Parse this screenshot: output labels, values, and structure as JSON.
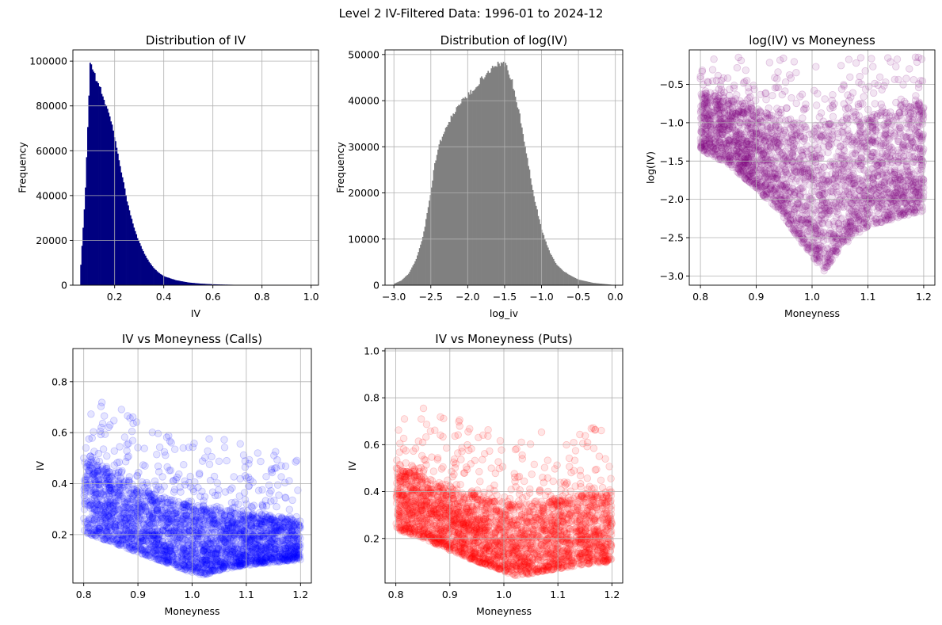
{
  "figure": {
    "suptitle": "Level 2 IV-Filtered Data: 1996-01 to 2024-12"
  },
  "chart_data": [
    {
      "type": "bar",
      "id": "hist_iv",
      "title": "Distribution of IV",
      "xlabel": "IV",
      "ylabel": "Frequency",
      "xlim": [
        0.03,
        1.03
      ],
      "ylim": [
        0,
        105000
      ],
      "xticks": [
        0.2,
        0.4,
        0.6,
        0.8,
        1.0
      ],
      "xtick_labels": [
        "0.2",
        "0.4",
        "0.6",
        "0.8",
        "1.0"
      ],
      "yticks": [
        0,
        20000,
        40000,
        60000,
        80000,
        100000
      ],
      "ytick_labels": [
        "0",
        "20000",
        "40000",
        "60000",
        "80000",
        "100000"
      ],
      "grid": true,
      "color": "#000080",
      "bin_range": [
        0.06,
        1.0
      ],
      "bins": 200,
      "profile_x": [
        0.06,
        0.08,
        0.1,
        0.105,
        0.11,
        0.12,
        0.14,
        0.16,
        0.18,
        0.2,
        0.22,
        0.24,
        0.26,
        0.28,
        0.3,
        0.32,
        0.34,
        0.36,
        0.38,
        0.4,
        0.45,
        0.5,
        0.55,
        0.6,
        0.65,
        0.7,
        0.75,
        0.8,
        1.0
      ],
      "profile_y": [
        5000,
        40000,
        99000,
        99500,
        97000,
        93000,
        88000,
        82000,
        75000,
        66000,
        55000,
        43000,
        33000,
        25000,
        19000,
        14000,
        10500,
        7500,
        5500,
        4000,
        2200,
        1200,
        700,
        400,
        250,
        150,
        100,
        50,
        0
      ]
    },
    {
      "type": "bar",
      "id": "hist_logiv",
      "title": "Distribution of log(IV)",
      "xlabel": "log_iv",
      "ylabel": "Frequency",
      "xlim": [
        -3.12,
        0.1
      ],
      "ylim": [
        0,
        51000
      ],
      "xticks": [
        -3.0,
        -2.5,
        -2.0,
        -1.5,
        -1.0,
        -0.5,
        0.0
      ],
      "xtick_labels": [
        "−3.0",
        "−2.5",
        "−2.0",
        "−1.5",
        "−1.0",
        "−0.5",
        "0.0"
      ],
      "yticks": [
        0,
        10000,
        20000,
        30000,
        40000,
        50000
      ],
      "ytick_labels": [
        "0",
        "10000",
        "20000",
        "30000",
        "40000",
        "50000"
      ],
      "grid": true,
      "color": "#808080",
      "bin_range": [
        -3.0,
        -0.05
      ],
      "bins": 200,
      "profile_x": [
        -3.0,
        -2.9,
        -2.8,
        -2.7,
        -2.6,
        -2.5,
        -2.45,
        -2.4,
        -2.3,
        -2.2,
        -2.1,
        -2.0,
        -1.9,
        -1.8,
        -1.7,
        -1.6,
        -1.55,
        -1.5,
        -1.45,
        -1.4,
        -1.3,
        -1.2,
        -1.1,
        -1.0,
        -0.9,
        -0.8,
        -0.7,
        -0.6,
        -0.5,
        -0.3,
        -0.05
      ],
      "profile_y": [
        300,
        1000,
        2500,
        5500,
        11000,
        20000,
        26000,
        30000,
        34000,
        37000,
        39500,
        41000,
        43000,
        45000,
        46500,
        48000,
        48300,
        48000,
        46500,
        44000,
        37000,
        28000,
        19000,
        12000,
        7500,
        4500,
        3000,
        2000,
        1200,
        500,
        100
      ]
    },
    {
      "type": "scatter",
      "id": "scatter_logiv",
      "title": "log(IV) vs Moneyness",
      "xlabel": "Moneyness",
      "ylabel": "log(IV)",
      "xlim": [
        0.78,
        1.22
      ],
      "ylim": [
        -3.12,
        -0.05
      ],
      "xticks": [
        0.8,
        0.9,
        1.0,
        1.1,
        1.2
      ],
      "xtick_labels": [
        "0.8",
        "0.9",
        "1.0",
        "1.1",
        "1.2"
      ],
      "yticks": [
        -3.0,
        -2.5,
        -2.0,
        -1.5,
        -1.0,
        -0.5
      ],
      "ytick_labels": [
        "−3.0",
        "−2.5",
        "−2.0",
        "−1.5",
        "−1.0",
        "−0.5"
      ],
      "grid": true,
      "color": "#800080",
      "alpha": 0.1,
      "density": "very dense",
      "lower_envelope": [
        [
          0.8,
          -1.35
        ],
        [
          0.85,
          -1.55
        ],
        [
          0.9,
          -1.85
        ],
        [
          0.95,
          -2.25
        ],
        [
          1.0,
          -2.75
        ],
        [
          1.02,
          -2.95
        ],
        [
          1.05,
          -2.65
        ],
        [
          1.1,
          -2.35
        ],
        [
          1.15,
          -2.25
        ],
        [
          1.2,
          -2.15
        ]
      ],
      "upper_envelope": [
        [
          0.8,
          -0.6
        ],
        [
          0.85,
          -0.7
        ],
        [
          0.9,
          -0.85
        ],
        [
          0.95,
          -0.95
        ],
        [
          1.0,
          -1.05
        ],
        [
          1.05,
          -1.0
        ],
        [
          1.1,
          -0.95
        ],
        [
          1.15,
          -0.85
        ],
        [
          1.2,
          -0.75
        ]
      ]
    },
    {
      "type": "scatter",
      "id": "scatter_calls",
      "title": "IV vs Moneyness (Calls)",
      "xlabel": "Moneyness",
      "ylabel": "IV",
      "xlim": [
        0.78,
        1.22
      ],
      "ylim": [
        0.01,
        0.93
      ],
      "xticks": [
        0.8,
        0.9,
        1.0,
        1.1,
        1.2
      ],
      "xtick_labels": [
        "0.8",
        "0.9",
        "1.0",
        "1.1",
        "1.2"
      ],
      "yticks": [
        0.2,
        0.4,
        0.6,
        0.8
      ],
      "ytick_labels": [
        "0.2",
        "0.4",
        "0.6",
        "0.8"
      ],
      "grid": true,
      "color": "#0000ff",
      "alpha": 0.1,
      "density": "very dense",
      "lower_envelope": [
        [
          0.8,
          0.21
        ],
        [
          0.85,
          0.17
        ],
        [
          0.9,
          0.13
        ],
        [
          0.95,
          0.09
        ],
        [
          1.0,
          0.05
        ],
        [
          1.02,
          0.04
        ],
        [
          1.05,
          0.06
        ],
        [
          1.1,
          0.08
        ],
        [
          1.15,
          0.09
        ],
        [
          1.2,
          0.1
        ]
      ],
      "upper_envelope": [
        [
          0.8,
          0.5
        ],
        [
          0.85,
          0.45
        ],
        [
          0.9,
          0.38
        ],
        [
          0.95,
          0.34
        ],
        [
          1.0,
          0.31
        ],
        [
          1.05,
          0.3
        ],
        [
          1.1,
          0.28
        ],
        [
          1.15,
          0.27
        ],
        [
          1.2,
          0.25
        ]
      ]
    },
    {
      "type": "scatter",
      "id": "scatter_puts",
      "title": "IV vs Moneyness (Puts)",
      "xlabel": "Moneyness",
      "ylabel": "IV",
      "xlim": [
        0.78,
        1.22
      ],
      "ylim": [
        0.01,
        1.01
      ],
      "xticks": [
        0.8,
        0.9,
        1.0,
        1.1,
        1.2
      ],
      "xtick_labels": [
        "0.8",
        "0.9",
        "1.0",
        "1.1",
        "1.2"
      ],
      "yticks": [
        0.2,
        0.4,
        0.6,
        0.8,
        1.0
      ],
      "ytick_labels": [
        "0.2",
        "0.4",
        "0.6",
        "0.8",
        "1.0"
      ],
      "grid": true,
      "color": "#ff0000",
      "alpha": 0.1,
      "density": "very dense",
      "lower_envelope": [
        [
          0.8,
          0.24
        ],
        [
          0.85,
          0.2
        ],
        [
          0.9,
          0.15
        ],
        [
          0.95,
          0.1
        ],
        [
          1.0,
          0.06
        ],
        [
          1.02,
          0.04
        ],
        [
          1.05,
          0.05
        ],
        [
          1.1,
          0.07
        ],
        [
          1.15,
          0.09
        ],
        [
          1.2,
          0.1
        ]
      ],
      "upper_envelope": [
        [
          0.8,
          0.5
        ],
        [
          0.85,
          0.46
        ],
        [
          0.9,
          0.42
        ],
        [
          0.95,
          0.38
        ],
        [
          1.0,
          0.34
        ],
        [
          1.05,
          0.35
        ],
        [
          1.1,
          0.36
        ],
        [
          1.15,
          0.38
        ],
        [
          1.2,
          0.4
        ]
      ]
    }
  ]
}
